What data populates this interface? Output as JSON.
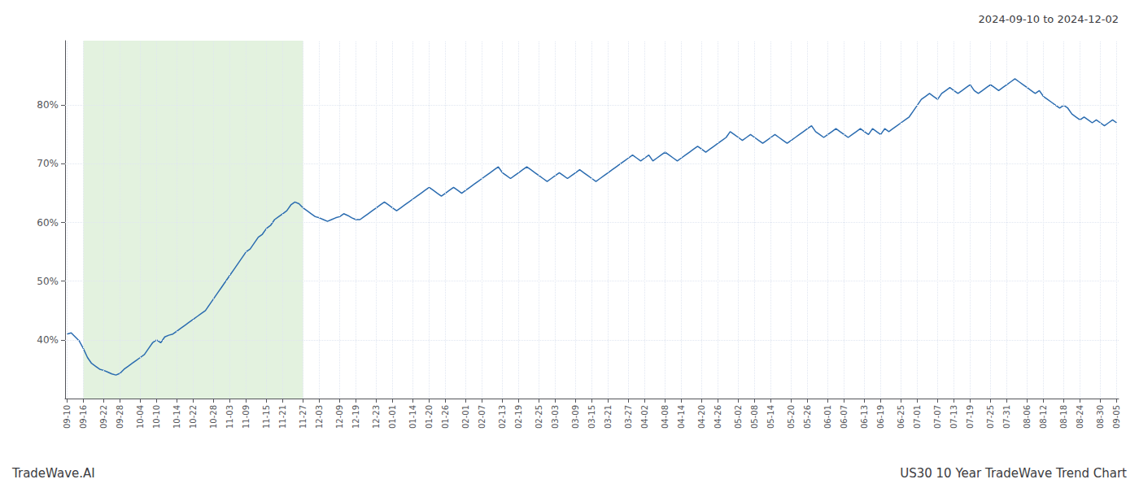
{
  "chart_data": {
    "type": "line",
    "title": "US30 10 Year TradeWave Trend Chart",
    "subtitle": "2024-09-10 to 2024-12-02",
    "annotations": [
      "TradeWave.AI"
    ],
    "color": "#2b6cb0",
    "grid": true,
    "ylim": [
      30,
      91
    ],
    "yticks": [
      {
        "value": 40,
        "label": "40%"
      },
      {
        "value": 50,
        "label": "50%"
      },
      {
        "value": 60,
        "label": "60%"
      },
      {
        "value": 70,
        "label": "70%"
      },
      {
        "value": 80,
        "label": "80%"
      }
    ],
    "highlight": {
      "from": "09-16",
      "to": "11-27",
      "color": "#c8e6c0"
    },
    "categories": [
      "09-10",
      null,
      null,
      null,
      "09-16",
      null,
      null,
      null,
      null,
      "09-22",
      null,
      null,
      null,
      "09-28",
      null,
      null,
      null,
      null,
      "10-04",
      null,
      null,
      null,
      "10-10",
      null,
      null,
      null,
      null,
      "10-14",
      null,
      null,
      null,
      "10-22",
      null,
      null,
      null,
      null,
      "10-28",
      null,
      null,
      null,
      "11-03",
      null,
      null,
      null,
      "11-09",
      null,
      null,
      null,
      null,
      "11-15",
      null,
      null,
      null,
      "11-21",
      null,
      null,
      null,
      null,
      "11-27",
      null,
      null,
      null,
      "12-03",
      null,
      null,
      null,
      null,
      "12-09",
      null,
      null,
      null,
      "12-19",
      null,
      null,
      null,
      null,
      "12-23",
      null,
      null,
      null,
      "01-01",
      null,
      null,
      null,
      null,
      "01-14",
      null,
      null,
      null,
      "01-20",
      null,
      null,
      null,
      "01-26",
      null,
      null,
      null,
      null,
      "02-01",
      null,
      null,
      null,
      "02-07",
      null,
      null,
      null,
      null,
      "02-13",
      null,
      null,
      null,
      "02-19",
      null,
      null,
      null,
      null,
      "02-25",
      null,
      null,
      null,
      "03-03",
      null,
      null,
      null,
      null,
      "03-09",
      null,
      null,
      null,
      "03-15",
      null,
      null,
      null,
      "03-21",
      null,
      null,
      null,
      null,
      "03-27",
      null,
      null,
      null,
      "04-02",
      null,
      null,
      null,
      null,
      "04-08",
      null,
      null,
      null,
      "04-14",
      null,
      null,
      null,
      null,
      "04-20",
      null,
      null,
      null,
      "04-26",
      null,
      null,
      null,
      null,
      "05-02",
      null,
      null,
      null,
      "05-08",
      null,
      null,
      null,
      "05-14",
      null,
      null,
      null,
      null,
      "05-20",
      null,
      null,
      null,
      "05-26",
      null,
      null,
      null,
      null,
      "06-01",
      null,
      null,
      null,
      "06-07",
      null,
      null,
      null,
      null,
      "06-13",
      null,
      null,
      null,
      "06-19",
      null,
      null,
      null,
      null,
      "06-25",
      null,
      null,
      null,
      "07-01",
      null,
      null,
      null,
      null,
      "07-07",
      null,
      null,
      null,
      "07-13",
      null,
      null,
      null,
      "07-19",
      null,
      null,
      null,
      null,
      "07-25",
      null,
      null,
      null,
      "07-31",
      null,
      null,
      null,
      null,
      "08-06",
      null,
      null,
      null,
      "08-12",
      null,
      null,
      null,
      null,
      "08-18",
      null,
      null,
      null,
      "08-24",
      null,
      null,
      null,
      null,
      "08-30",
      null,
      null,
      null,
      "09-05"
    ],
    "values": [
      41.0,
      41.2,
      40.5,
      39.8,
      38.5,
      37.0,
      36.0,
      35.5,
      35.0,
      34.8,
      34.5,
      34.2,
      34.0,
      34.3,
      35.0,
      35.5,
      36.0,
      36.5,
      37.0,
      37.5,
      38.5,
      39.5,
      40.0,
      39.5,
      40.5,
      40.8,
      41.0,
      41.5,
      42.0,
      42.5,
      43.0,
      43.5,
      44.0,
      44.5,
      45.0,
      46.0,
      47.0,
      48.0,
      49.0,
      50.0,
      51.0,
      52.0,
      53.0,
      54.0,
      55.0,
      55.5,
      56.5,
      57.5,
      58.0,
      59.0,
      59.5,
      60.5,
      61.0,
      61.5,
      62.0,
      63.0,
      63.5,
      63.2,
      62.5,
      62.0,
      61.5,
      61.0,
      60.8,
      60.5,
      60.2,
      60.5,
      60.8,
      61.0,
      61.5,
      61.2,
      60.8,
      60.5,
      60.5,
      61.0,
      61.5,
      62.0,
      62.5,
      63.0,
      63.5,
      63.0,
      62.5,
      62.0,
      62.5,
      63.0,
      63.5,
      64.0,
      64.5,
      65.0,
      65.5,
      66.0,
      65.5,
      65.0,
      64.5,
      65.0,
      65.5,
      66.0,
      65.5,
      65.0,
      65.5,
      66.0,
      66.5,
      67.0,
      67.5,
      68.0,
      68.5,
      69.0,
      69.5,
      68.5,
      68.0,
      67.5,
      68.0,
      68.5,
      69.0,
      69.5,
      69.0,
      68.5,
      68.0,
      67.5,
      67.0,
      67.5,
      68.0,
      68.5,
      68.0,
      67.5,
      68.0,
      68.5,
      69.0,
      68.5,
      68.0,
      67.5,
      67.0,
      67.5,
      68.0,
      68.5,
      69.0,
      69.5,
      70.0,
      70.5,
      71.0,
      71.5,
      71.0,
      70.5,
      71.0,
      71.5,
      70.5,
      71.0,
      71.5,
      72.0,
      71.5,
      71.0,
      70.5,
      71.0,
      71.5,
      72.0,
      72.5,
      73.0,
      72.5,
      72.0,
      72.5,
      73.0,
      73.5,
      74.0,
      74.5,
      75.5,
      75.0,
      74.5,
      74.0,
      74.5,
      75.0,
      74.5,
      74.0,
      73.5,
      74.0,
      74.5,
      75.0,
      74.5,
      74.0,
      73.5,
      74.0,
      74.5,
      75.0,
      75.5,
      76.0,
      76.5,
      75.5,
      75.0,
      74.5,
      75.0,
      75.5,
      76.0,
      75.5,
      75.0,
      74.5,
      75.0,
      75.5,
      76.0,
      75.5,
      75.0,
      76.0,
      75.5,
      75.0,
      76.0,
      75.5,
      76.0,
      76.5,
      77.0,
      77.5,
      78.0,
      79.0,
      80.0,
      81.0,
      81.5,
      82.0,
      81.5,
      81.0,
      82.0,
      82.5,
      83.0,
      82.5,
      82.0,
      82.5,
      83.0,
      83.5,
      82.5,
      82.0,
      82.5,
      83.0,
      83.5,
      83.0,
      82.5,
      83.0,
      83.5,
      84.0,
      84.5,
      84.0,
      83.5,
      83.0,
      82.5,
      82.0,
      82.5,
      81.5,
      81.0,
      80.5,
      80.0,
      79.5,
      80.0,
      79.5,
      78.5,
      78.0,
      77.5,
      78.0,
      77.5,
      77.0,
      77.5,
      77.0,
      76.5,
      77.0,
      77.5,
      77.0
    ]
  }
}
